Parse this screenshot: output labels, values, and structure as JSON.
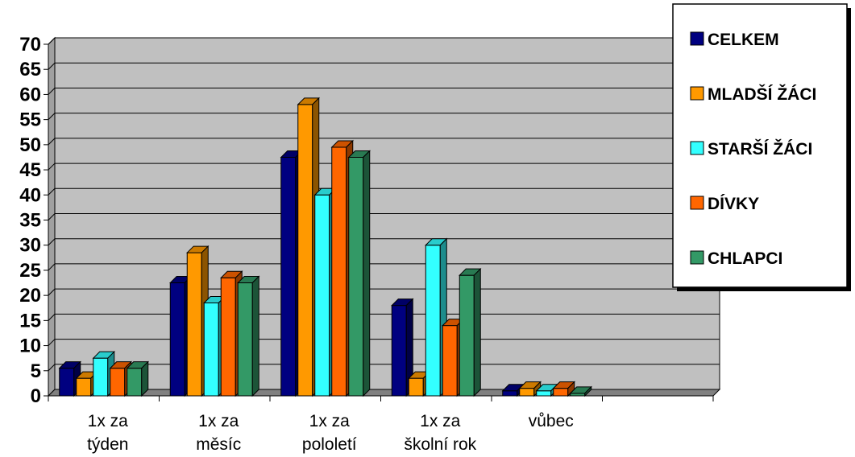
{
  "chart_data": {
    "type": "bar",
    "categories": [
      [
        "1x za",
        "týden"
      ],
      [
        "1x za",
        "měsíc"
      ],
      [
        "1x za",
        "pololetí"
      ],
      [
        "1x za",
        "školní rok"
      ],
      [
        "vůbec"
      ],
      [
        ""
      ]
    ],
    "series": [
      {
        "name": "CELKEM",
        "color": "#000080",
        "values": [
          5.5,
          22.5,
          47.5,
          18,
          1,
          null
        ]
      },
      {
        "name": "MLADŠÍ ŽÁCI",
        "color": "#ff9900",
        "values": [
          3.5,
          28.5,
          58,
          3.5,
          1.5,
          null
        ]
      },
      {
        "name": "STARŠÍ ŽÁCI",
        "color": "#33ffff",
        "values": [
          7.5,
          18.5,
          40,
          30,
          1,
          null
        ]
      },
      {
        "name": "DÍVKY",
        "color": "#ff6600",
        "values": [
          5.5,
          23.5,
          49.5,
          14,
          1.5,
          null
        ]
      },
      {
        "name": "CHLAPCI",
        "color": "#339966",
        "values": [
          5.5,
          22.5,
          47.5,
          24,
          0.5,
          null
        ]
      }
    ],
    "ylim": [
      0,
      70
    ],
    "ytick_step": 5,
    "yticks": [
      "0",
      "5",
      "10",
      "15",
      "20",
      "25",
      "30",
      "35",
      "40",
      "45",
      "50",
      "55",
      "60",
      "65",
      "70"
    ],
    "grid": true,
    "wall_color": "#c0c0c0",
    "legend_position": "top-right",
    "title": "",
    "xlabel": "",
    "ylabel": ""
  }
}
